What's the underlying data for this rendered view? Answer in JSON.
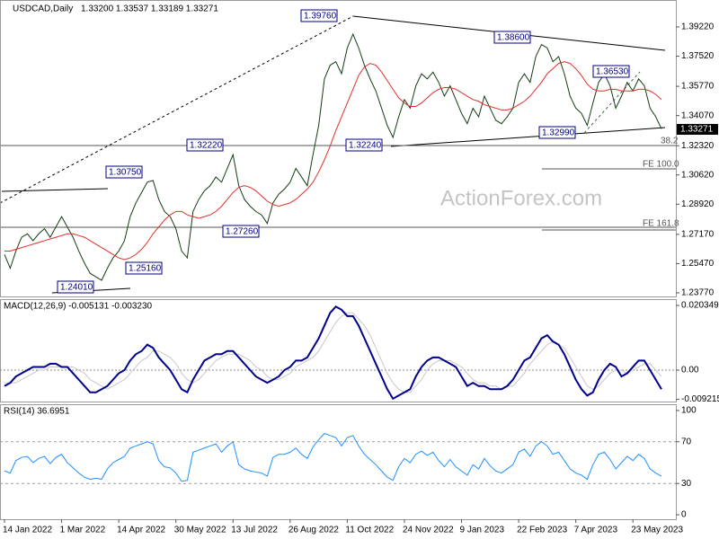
{
  "chart_data": [
    {
      "type": "line",
      "title": "USDCAD,Daily",
      "subtitle": "1.33200 1.33537 1.33189 1.33271",
      "watermark": "ActionForex.com",
      "ylim": [
        1.23561,
        1.40786
      ],
      "yticks": [
        {
          "value": 1.3922,
          "label": "1.39220"
        },
        {
          "value": 1.3752,
          "label": "1.37520"
        },
        {
          "value": 1.3577,
          "label": "1.35770"
        },
        {
          "value": 1.3407,
          "label": "1.34070"
        },
        {
          "value": 1.3232,
          "label": "1.32320"
        },
        {
          "value": 1.3062,
          "label": "1.30620"
        },
        {
          "value": 1.2892,
          "label": "1.28920"
        },
        {
          "value": 1.2717,
          "label": "1.27170"
        },
        {
          "value": 1.2547,
          "label": "1.25470"
        },
        {
          "value": 1.2377,
          "label": "1.23770"
        }
      ],
      "last_price": {
        "value": 1.33271,
        "label": "1.33271"
      },
      "annotations": [
        "1.39760",
        "1.38600",
        "1.36530",
        "1.32990",
        "1.32240",
        "1.32220",
        "1.30750",
        "1.27260",
        "1.25160",
        "1.24010"
      ],
      "fib_labels": [
        "38.2",
        "FE 100.0",
        "FE 161.8"
      ],
      "series": [
        {
          "color": "#143c14",
          "width": 1,
          "values": [
            1.26,
            1.252,
            1.262,
            1.27,
            1.272,
            1.268,
            1.272,
            1.275,
            1.27,
            1.276,
            1.282,
            1.276,
            1.27,
            1.262,
            1.255,
            1.249,
            1.247,
            1.245,
            1.252,
            1.258,
            1.262,
            1.268,
            1.282,
            1.29,
            1.296,
            1.302,
            1.303,
            1.292,
            1.285,
            1.282,
            1.275,
            1.262,
            1.258,
            1.285,
            1.292,
            1.297,
            1.3,
            1.305,
            1.302,
            1.31,
            1.318,
            1.3,
            1.292,
            1.288,
            1.285,
            1.283,
            1.278,
            1.29,
            1.295,
            1.298,
            1.302,
            1.31,
            1.305,
            1.3,
            1.318,
            1.335,
            1.362,
            1.37,
            1.372,
            1.365,
            1.38,
            1.388,
            1.38,
            1.37,
            1.362,
            1.355,
            1.345,
            1.335,
            1.328,
            1.34,
            1.35,
            1.345,
            1.358,
            1.365,
            1.362,
            1.366,
            1.36,
            1.352,
            1.358,
            1.35,
            1.342,
            1.336,
            1.345,
            1.34,
            1.352,
            1.345,
            1.338,
            1.336,
            1.34,
            1.345,
            1.36,
            1.365,
            1.36,
            1.375,
            1.382,
            1.38,
            1.372,
            1.375,
            1.365,
            1.352,
            1.345,
            1.342,
            1.335,
            1.348,
            1.36,
            1.365,
            1.358,
            1.345,
            1.352,
            1.36,
            1.355,
            1.362,
            1.358,
            1.345,
            1.34,
            1.333
          ]
        },
        {
          "color": "#e0302a",
          "width": 1,
          "values": [
            1.262,
            1.262,
            1.263,
            1.264,
            1.265,
            1.266,
            1.267,
            1.268,
            1.269,
            1.27,
            1.271,
            1.272,
            1.272,
            1.271,
            1.27,
            1.268,
            1.266,
            1.264,
            1.262,
            1.26,
            1.258,
            1.257,
            1.258,
            1.26,
            1.263,
            1.267,
            1.272,
            1.276,
            1.28,
            1.283,
            1.285,
            1.285,
            1.283,
            1.282,
            1.281,
            1.282,
            1.283,
            1.285,
            1.288,
            1.292,
            1.296,
            1.299,
            1.3,
            1.299,
            1.297,
            1.294,
            1.291,
            1.289,
            1.288,
            1.289,
            1.29,
            1.292,
            1.295,
            1.298,
            1.302,
            1.308,
            1.315,
            1.323,
            1.332,
            1.34,
            1.348,
            1.356,
            1.364,
            1.369,
            1.371,
            1.37,
            1.366,
            1.361,
            1.356,
            1.351,
            1.348,
            1.346,
            1.346,
            1.348,
            1.351,
            1.354,
            1.356,
            1.357,
            1.357,
            1.356,
            1.354,
            1.352,
            1.35,
            1.349,
            1.347,
            1.346,
            1.345,
            1.344,
            1.344,
            1.345,
            1.347,
            1.349,
            1.352,
            1.356,
            1.36,
            1.365,
            1.368,
            1.371,
            1.372,
            1.371,
            1.368,
            1.364,
            1.359,
            1.356,
            1.355,
            1.355,
            1.356,
            1.356,
            1.355,
            1.355,
            1.355,
            1.356,
            1.356,
            1.355,
            1.353,
            1.35
          ]
        }
      ]
    },
    {
      "type": "line",
      "title": "MACD(12,26,9) -0.005131 -0.003230",
      "ylim": [
        -0.009892,
        0.022327
      ],
      "yticks": [
        0.020349,
        {
          "value": 0,
          "label": "0.00"
        },
        -0.009215
      ],
      "zero_line": true,
      "series": [
        {
          "color": "#c8c8c8",
          "width": 1,
          "values": [
            -0.004,
            -0.004,
            -0.004,
            -0.003,
            -0.002,
            -0.001,
            0.0,
            0.0,
            0.001,
            0.001,
            0.001,
            0.001,
            0.001,
            0.0,
            -0.001,
            -0.003,
            -0.004,
            -0.005,
            -0.006,
            -0.005,
            -0.004,
            -0.003,
            -0.001,
            0.001,
            0.003,
            0.004,
            0.006,
            0.006,
            0.005,
            0.004,
            0.002,
            -0.001,
            -0.003,
            -0.004,
            -0.003,
            -0.001,
            0.001,
            0.003,
            0.004,
            0.005,
            0.005,
            0.005,
            0.004,
            0.003,
            0.001,
            0.0,
            -0.002,
            -0.003,
            -0.003,
            -0.002,
            -0.001,
            0.001,
            0.002,
            0.003,
            0.004,
            0.006,
            0.009,
            0.012,
            0.015,
            0.017,
            0.018,
            0.018,
            0.016,
            0.014,
            0.011,
            0.007,
            0.003,
            -0.001,
            -0.004,
            -0.006,
            -0.007,
            -0.007,
            -0.005,
            -0.003,
            0.0,
            0.002,
            0.003,
            0.003,
            0.003,
            0.002,
            0.001,
            -0.001,
            -0.003,
            -0.004,
            -0.004,
            -0.005,
            -0.005,
            -0.006,
            -0.005,
            -0.005,
            -0.003,
            -0.001,
            0.002,
            0.004,
            0.006,
            0.008,
            0.009,
            0.008,
            0.007,
            0.004,
            0.001,
            -0.002,
            -0.005,
            -0.006,
            -0.005,
            -0.003,
            -0.001,
            0.0,
            0.0,
            -0.001,
            0.0,
            0.001,
            0.002,
            0.002,
            0.0,
            -0.002
          ]
        },
        {
          "color": "#00008b",
          "width": 2,
          "values": [
            -0.005,
            -0.004,
            -0.002,
            -0.001,
            0.0,
            0.001,
            0.001,
            0.001,
            0.002,
            0.002,
            0.001,
            0.001,
            -0.001,
            -0.003,
            -0.005,
            -0.007,
            -0.007,
            -0.006,
            -0.005,
            -0.003,
            -0.001,
            0.0,
            0.003,
            0.005,
            0.006,
            0.008,
            0.007,
            0.004,
            0.002,
            0.0,
            -0.003,
            -0.006,
            -0.007,
            -0.003,
            0.0,
            0.003,
            0.004,
            0.005,
            0.005,
            0.006,
            0.006,
            0.004,
            0.002,
            0.0,
            -0.002,
            -0.003,
            -0.004,
            -0.003,
            -0.002,
            0.0,
            0.001,
            0.003,
            0.003,
            0.004,
            0.007,
            0.01,
            0.014,
            0.018,
            0.02,
            0.019,
            0.017,
            0.017,
            0.014,
            0.01,
            0.006,
            0.002,
            -0.002,
            -0.006,
            -0.009,
            -0.008,
            -0.007,
            -0.006,
            -0.002,
            0.001,
            0.003,
            0.004,
            0.004,
            0.003,
            0.002,
            0.001,
            -0.002,
            -0.005,
            -0.004,
            -0.005,
            -0.005,
            -0.006,
            -0.006,
            -0.006,
            -0.005,
            -0.003,
            0.0,
            0.003,
            0.004,
            0.007,
            0.01,
            0.011,
            0.009,
            0.008,
            0.005,
            0.001,
            -0.003,
            -0.006,
            -0.008,
            -0.007,
            -0.003,
            0.0,
            0.002,
            0.001,
            -0.002,
            -0.001,
            0.001,
            0.003,
            0.003,
            0.0,
            -0.003,
            -0.006
          ]
        }
      ]
    },
    {
      "type": "line",
      "title": "RSI(14) 36.6951",
      "ylim": [
        -4.3,
        106
      ],
      "yticks": [
        100,
        70,
        30,
        0
      ],
      "levels": [
        70,
        30
      ],
      "categories": [
        "14 Jan 2022",
        null,
        null,
        null,
        null,
        null,
        null,
        null,
        null,
        null,
        "1 Mar 2022",
        null,
        null,
        null,
        null,
        null,
        null,
        null,
        null,
        null,
        "14 Apr 2022",
        null,
        null,
        null,
        null,
        null,
        null,
        null,
        null,
        null,
        "30 May 2022",
        null,
        null,
        null,
        null,
        null,
        null,
        null,
        null,
        null,
        "13 Jul 2022",
        null,
        null,
        null,
        null,
        null,
        null,
        null,
        null,
        null,
        "26 Aug 2022",
        null,
        null,
        null,
        null,
        null,
        null,
        null,
        null,
        null,
        "11 Oct 2022",
        null,
        null,
        null,
        null,
        null,
        null,
        null,
        null,
        null,
        "24 Nov 2022",
        null,
        null,
        null,
        null,
        null,
        null,
        null,
        null,
        null,
        "9 Jan 2023",
        null,
        null,
        null,
        null,
        null,
        null,
        null,
        null,
        null,
        "22 Feb 2023",
        null,
        null,
        null,
        null,
        null,
        null,
        null,
        null,
        null,
        "7 Apr 2023",
        null,
        null,
        null,
        null,
        null,
        null,
        null,
        null,
        null,
        "23 May 2023",
        null,
        null,
        null,
        null,
        null
      ],
      "series": [
        {
          "color": "#1e90ff",
          "width": 1,
          "values": [
            42,
            40,
            52,
            55,
            56,
            50,
            54,
            56,
            49,
            55,
            58,
            50,
            45,
            40,
            36,
            34,
            35,
            34,
            44,
            50,
            53,
            56,
            64,
            66,
            68,
            70,
            68,
            52,
            46,
            45,
            40,
            32,
            33,
            60,
            62,
            64,
            66,
            68,
            60,
            66,
            70,
            48,
            44,
            42,
            41,
            40,
            37,
            55,
            58,
            58,
            60,
            64,
            58,
            54,
            65,
            72,
            78,
            76,
            74,
            66,
            74,
            76,
            66,
            58,
            53,
            48,
            42,
            36,
            33,
            46,
            54,
            50,
            58,
            61,
            57,
            60,
            52,
            46,
            53,
            46,
            42,
            38,
            48,
            44,
            54,
            47,
            42,
            40,
            44,
            48,
            60,
            63,
            56,
            66,
            70,
            66,
            58,
            60,
            52,
            44,
            40,
            38,
            34,
            48,
            58,
            60,
            53,
            44,
            50,
            56,
            52,
            58,
            54,
            44,
            40,
            37
          ]
        }
      ]
    }
  ]
}
